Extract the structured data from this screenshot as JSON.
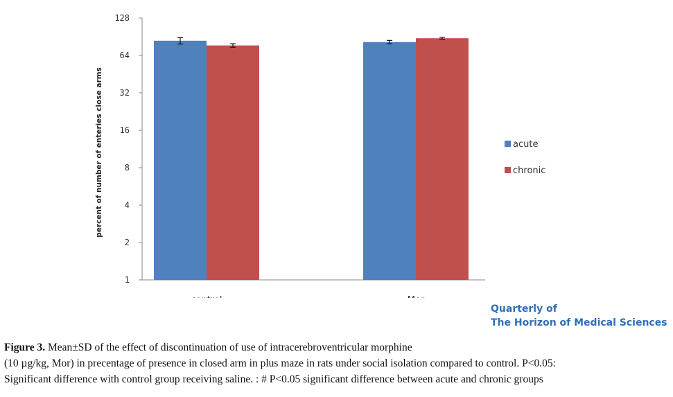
{
  "chart_data": {
    "type": "bar",
    "title": "",
    "xlabel": "",
    "ylabel": "percent of number of enteries close arms",
    "y_scale": "log2",
    "ylim": [
      1,
      128
    ],
    "y_ticks": [
      1,
      2,
      4,
      8,
      16,
      32,
      64,
      128
    ],
    "categories": [
      "control",
      "Mor"
    ],
    "series": [
      {
        "name": "acute",
        "color": "#4f81bd",
        "values": [
          84,
          82
        ],
        "errors": [
          5,
          2.5
        ]
      },
      {
        "name": "chronic",
        "color": "#c0504d",
        "values": [
          77,
          88
        ],
        "errors": [
          2.5,
          1.5
        ]
      }
    ],
    "legend_position": "right",
    "grid": false
  },
  "journal": {
    "line1": "Quarterly of",
    "line2": "The Horizon of Medical Sciences"
  },
  "caption": {
    "fig_label": "Figure 3.",
    "line1": " Mean±SD of the effect of discontinuation of use of intracerebroventricular morphine",
    "line2": "(10 µg/kg, Mor) in precentage of presence in closed arm in plus maze in rats under social isolation compared to control. P<0.05:",
    "line3": "Significant difference with control group receiving saline. : # P<0.05 significant difference between acute and chronic groups"
  }
}
